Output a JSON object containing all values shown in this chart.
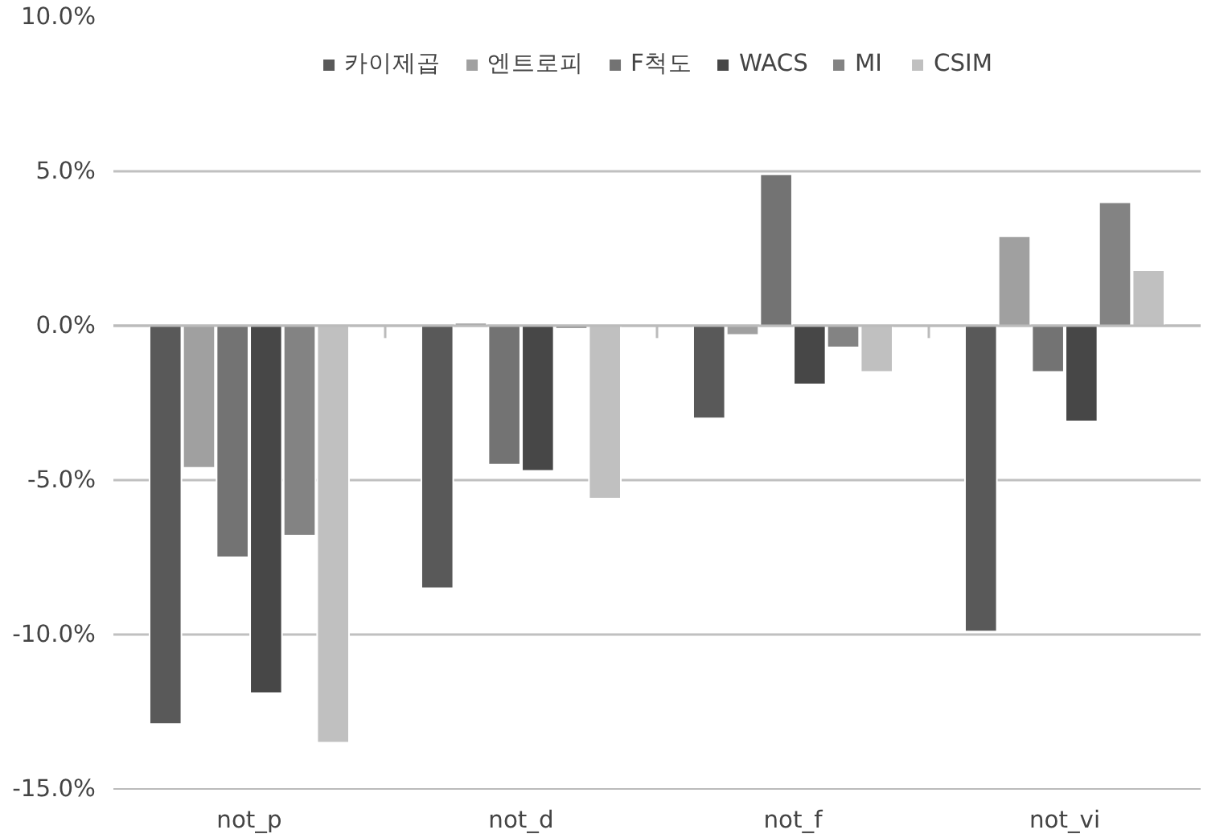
{
  "chart_data": {
    "type": "bar",
    "categories": [
      "not_p",
      "not_d",
      "not_f",
      "not_vi"
    ],
    "series": [
      {
        "name": "카이제곱",
        "color": "#595959",
        "values": [
          -12.9,
          -8.5,
          -3.0,
          -9.9
        ]
      },
      {
        "name": "엔트로피",
        "color": "#a0a0a0",
        "values": [
          -4.6,
          0.1,
          -0.3,
          2.9
        ]
      },
      {
        "name": "F척도",
        "color": "#737373",
        "values": [
          -7.5,
          -4.5,
          4.9,
          -1.5
        ]
      },
      {
        "name": "WACS",
        "color": "#474747",
        "values": [
          -11.9,
          -4.7,
          -1.9,
          -3.1
        ]
      },
      {
        "name": "MI",
        "color": "#838383",
        "values": [
          -6.8,
          -0.1,
          -0.7,
          4.0
        ]
      },
      {
        "name": "CSIM",
        "color": "#c0c0c0",
        "values": [
          -13.5,
          -5.6,
          -1.5,
          1.8
        ]
      }
    ],
    "ylim": [
      -15,
      10
    ],
    "yticks": [
      {
        "value": -15,
        "label": "-15.0%"
      },
      {
        "value": -10,
        "label": "-10.0%"
      },
      {
        "value": -5,
        "label": "-5.0%"
      },
      {
        "value": 0,
        "label": "0.0%"
      },
      {
        "value": 5,
        "label": "5.0%"
      },
      {
        "value": 10,
        "label": "10.0%"
      }
    ],
    "grid": "y",
    "legend": "top"
  }
}
